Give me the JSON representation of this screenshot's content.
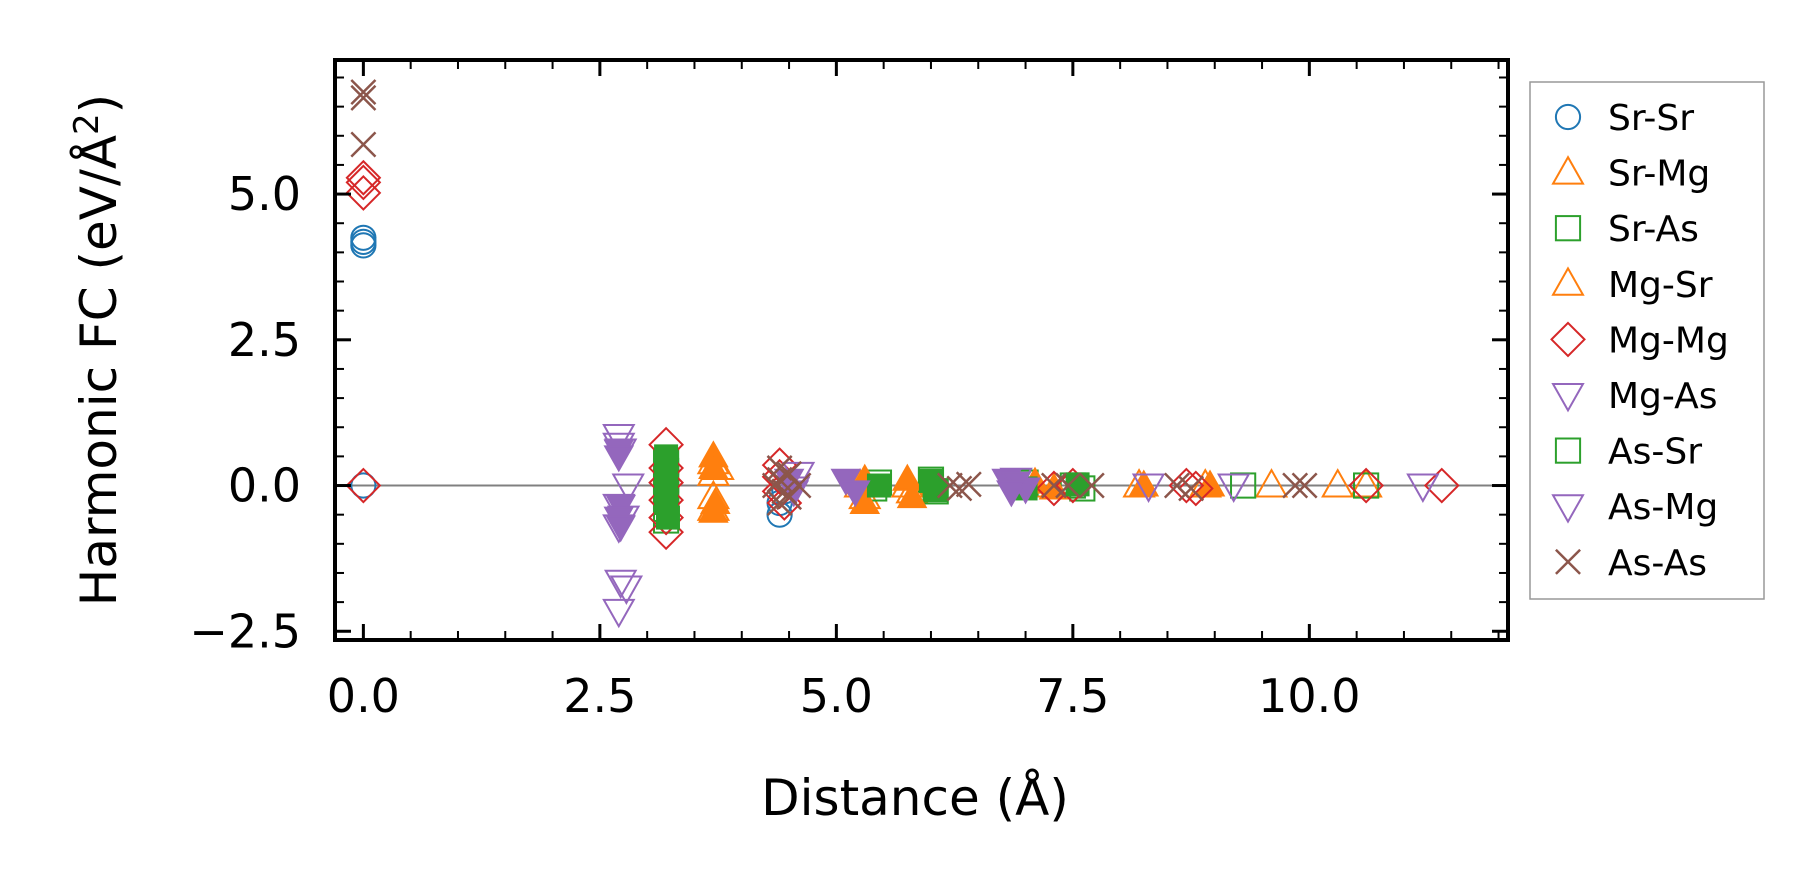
{
  "chart_data": {
    "type": "scatter",
    "title": "",
    "xlabel": "Distance (Å)",
    "ylabel_main": "Harmonic FC (eV/Å",
    "ylabel_sup": "2",
    "ylabel_close": ")",
    "xlim": [
      -0.3,
      12.1
    ],
    "ylim": [
      -2.65,
      7.3
    ],
    "xticks": [
      0.0,
      2.5,
      5.0,
      7.5,
      10.0
    ],
    "xtick_labels": [
      "0.0",
      "2.5",
      "5.0",
      "7.5",
      "10.0"
    ],
    "yticks": [
      -2.5,
      0.0,
      2.5,
      5.0
    ],
    "ytick_labels": [
      "−2.5",
      "0.0",
      "2.5",
      "5.0"
    ],
    "zero_line": true,
    "legend_position": "right-outside",
    "series": [
      {
        "name": "Sr-Sr",
        "color": "#1f77b4",
        "marker": "circle",
        "filled": false,
        "points": [
          [
            0.0,
            4.25
          ],
          [
            0.0,
            4.18
          ],
          [
            0.0,
            4.12
          ],
          [
            0.0,
            0.0
          ],
          [
            4.4,
            -0.3
          ],
          [
            4.4,
            -0.5
          ],
          [
            4.45,
            -0.1
          ]
        ]
      },
      {
        "name": "Sr-Mg",
        "color": "#ff7f0e",
        "marker": "triangle",
        "filled": false,
        "points": [
          [
            3.7,
            0.4
          ],
          [
            3.7,
            0.2
          ],
          [
            3.7,
            -0.2
          ],
          [
            3.7,
            -0.4
          ],
          [
            3.75,
            0.3
          ],
          [
            5.25,
            0.0
          ],
          [
            5.3,
            -0.2
          ],
          [
            5.75,
            0.0
          ],
          [
            5.8,
            -0.1
          ],
          [
            7.1,
            0.0
          ],
          [
            8.2,
            0.0
          ],
          [
            8.9,
            0.0
          ],
          [
            9.6,
            0.0
          ],
          [
            10.3,
            0.0
          ],
          [
            10.6,
            0.0
          ]
        ]
      },
      {
        "name": "Sr-As",
        "color": "#2ca02c",
        "marker": "square",
        "filled": false,
        "points": [
          [
            3.2,
            0.4
          ],
          [
            3.2,
            0.25
          ],
          [
            3.2,
            0.1
          ],
          [
            3.2,
            -0.1
          ],
          [
            3.2,
            -0.25
          ],
          [
            3.2,
            -0.4
          ],
          [
            3.2,
            -0.6
          ],
          [
            5.4,
            -0.05
          ],
          [
            5.45,
            0.05
          ],
          [
            6.0,
            0.1
          ],
          [
            6.05,
            -0.1
          ],
          [
            7.0,
            0.05
          ],
          [
            7.5,
            0.0
          ],
          [
            7.6,
            -0.05
          ],
          [
            9.3,
            0.0
          ],
          [
            10.6,
            0.0
          ]
        ]
      },
      {
        "name": "Mg-Sr",
        "color": "#ff7f0e",
        "marker": "triangle",
        "filled": true,
        "points": [
          [
            3.7,
            0.5
          ],
          [
            3.7,
            0.3
          ],
          [
            3.72,
            -0.3
          ],
          [
            3.7,
            -0.45
          ],
          [
            5.3,
            0.1
          ],
          [
            5.3,
            -0.3
          ],
          [
            5.75,
            0.1
          ],
          [
            5.8,
            -0.2
          ],
          [
            7.1,
            0.05
          ],
          [
            7.3,
            -0.05
          ],
          [
            8.25,
            0.0
          ],
          [
            8.95,
            0.0
          ]
        ]
      },
      {
        "name": "Mg-Mg",
        "color": "#d62728",
        "marker": "diamond",
        "filled": false,
        "points": [
          [
            0.0,
            5.28
          ],
          [
            0.0,
            5.2
          ],
          [
            0.0,
            5.02
          ],
          [
            0.0,
            0.0
          ],
          [
            3.2,
            0.7
          ],
          [
            3.2,
            0.3
          ],
          [
            3.2,
            0.05
          ],
          [
            3.2,
            -0.25
          ],
          [
            3.2,
            -0.55
          ],
          [
            3.2,
            -0.8
          ],
          [
            4.4,
            0.35
          ],
          [
            4.4,
            0.15
          ],
          [
            4.4,
            -0.1
          ],
          [
            4.45,
            -0.3
          ],
          [
            7.3,
            -0.05
          ],
          [
            7.5,
            0.0
          ],
          [
            8.7,
            0.0
          ],
          [
            8.8,
            -0.05
          ],
          [
            10.6,
            0.0
          ],
          [
            11.4,
            0.0
          ]
        ]
      },
      {
        "name": "Mg-As",
        "color": "#9467bd",
        "marker": "tri_down",
        "filled": false,
        "points": [
          [
            2.7,
            0.85
          ],
          [
            2.7,
            0.7
          ],
          [
            2.72,
            0.6
          ],
          [
            2.8,
            0.0
          ],
          [
            2.7,
            -0.35
          ],
          [
            2.75,
            -0.55
          ],
          [
            2.7,
            -0.7
          ],
          [
            2.72,
            -1.65
          ],
          [
            2.78,
            -1.75
          ],
          [
            2.7,
            -2.15
          ],
          [
            4.6,
            0.2
          ],
          [
            4.55,
            -0.05
          ],
          [
            6.9,
            0.1
          ],
          [
            8.3,
            0.0
          ],
          [
            9.2,
            0.0
          ],
          [
            11.2,
            0.0
          ]
        ]
      },
      {
        "name": "As-Sr",
        "color": "#2ca02c",
        "marker": "square",
        "filled": true,
        "points": [
          [
            3.2,
            0.5
          ],
          [
            3.2,
            0.3
          ],
          [
            3.2,
            0.0
          ],
          [
            3.2,
            -0.3
          ],
          [
            3.22,
            -0.55
          ],
          [
            5.45,
            0.0
          ],
          [
            6.0,
            0.08
          ],
          [
            6.05,
            -0.08
          ],
          [
            7.0,
            -0.05
          ],
          [
            7.55,
            0.02
          ]
        ]
      },
      {
        "name": "As-Mg",
        "color": "#9467bd",
        "marker": "tri_down",
        "filled": true,
        "points": [
          [
            2.7,
            0.6
          ],
          [
            2.7,
            0.5
          ],
          [
            2.72,
            -0.35
          ],
          [
            2.7,
            -0.55
          ],
          [
            2.72,
            -0.7
          ],
          [
            4.5,
            0.1
          ],
          [
            4.55,
            -0.1
          ],
          [
            5.1,
            0.1
          ],
          [
            5.2,
            -0.1
          ],
          [
            6.8,
            0.1
          ],
          [
            6.9,
            0.05
          ],
          [
            7.0,
            -0.05
          ],
          [
            6.85,
            -0.1
          ]
        ]
      },
      {
        "name": "As-As",
        "color": "#8c564b",
        "marker": "x",
        "filled": false,
        "points": [
          [
            0.0,
            6.75
          ],
          [
            0.0,
            6.65
          ],
          [
            0.0,
            5.85
          ],
          [
            4.4,
            0.3
          ],
          [
            4.4,
            0.1
          ],
          [
            4.45,
            -0.1
          ],
          [
            4.4,
            -0.3
          ],
          [
            4.5,
            0.2
          ],
          [
            4.5,
            -0.2
          ],
          [
            4.6,
            0.0
          ],
          [
            4.35,
            0.0
          ],
          [
            6.2,
            0.0
          ],
          [
            6.3,
            -0.05
          ],
          [
            6.4,
            0.02
          ],
          [
            7.3,
            0.0
          ],
          [
            7.45,
            0.0
          ],
          [
            7.7,
            0.0
          ],
          [
            8.6,
            0.0
          ],
          [
            8.75,
            -0.05
          ],
          [
            9.85,
            0.0
          ],
          [
            9.95,
            0.0
          ]
        ]
      }
    ]
  }
}
